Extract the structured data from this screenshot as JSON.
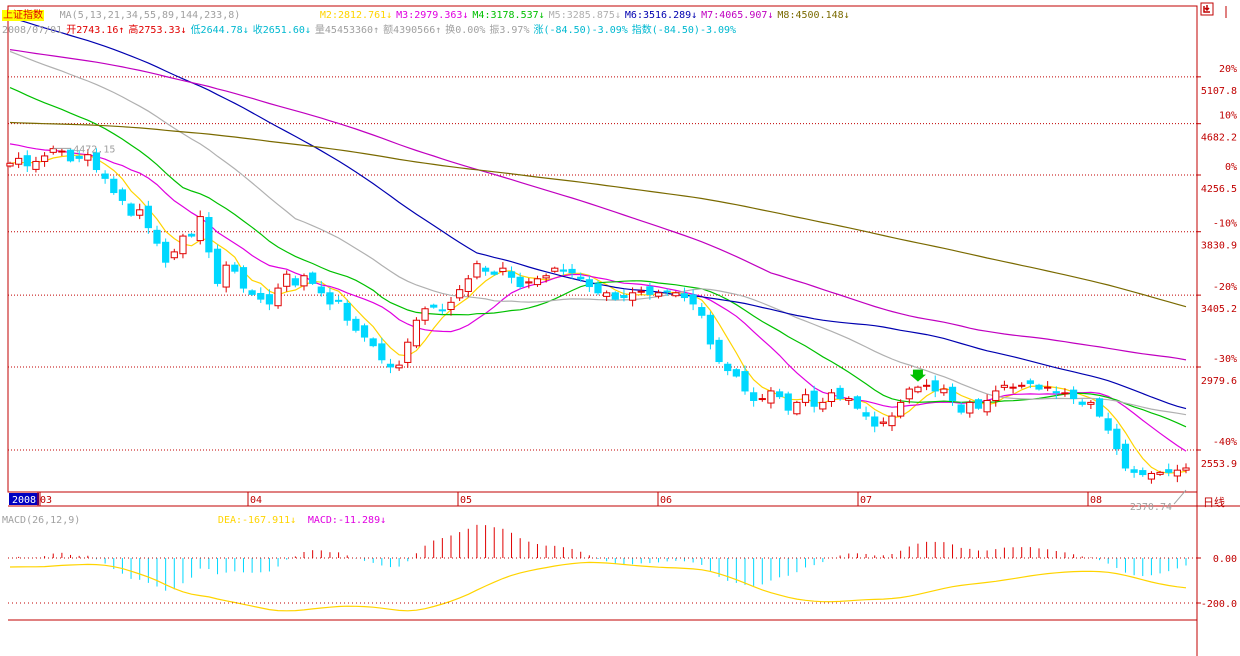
{
  "header": {
    "index_name": "上证指数",
    "ma_spec": "MA(5,13,21,34,55,89,144,233,8)",
    "ma_values": [
      {
        "label": "M2:2812.761↓",
        "color": "#ffd400"
      },
      {
        "label": "M3:2979.363↓",
        "color": "#e000e0"
      },
      {
        "label": "M4:3178.537↓",
        "color": "#00c000"
      },
      {
        "label": "M5:3285.875↓",
        "color": "#b0b0b0"
      },
      {
        "label": "M6:3516.289↓",
        "color": "#0000b0"
      },
      {
        "label": "M7:4065.907↓",
        "color": "#c000c0"
      },
      {
        "label": "M8:4500.148↓",
        "color": "#7a6a00"
      }
    ]
  },
  "info": [
    {
      "label": "2008/07/01",
      "color": "#a0a0a0"
    },
    {
      "label": "开2743.16↑",
      "color": "#e00000"
    },
    {
      "label": "高2753.33↓",
      "color": "#e00000"
    },
    {
      "label": "低2644.78↓",
      "color": "#00b8d0"
    },
    {
      "label": "收2651.60↓",
      "color": "#00b8d0"
    },
    {
      "label": "量45453360↑",
      "color": "#a0a0a0"
    },
    {
      "label": "额4390566↑",
      "color": "#a0a0a0"
    },
    {
      "label": "换0.00%",
      "color": "#a0a0a0"
    },
    {
      "label": "振3.97%",
      "color": "#a0a0a0"
    },
    {
      "label": "涨(-84.50)-3.09%",
      "color": "#00b8d0"
    },
    {
      "label": "指数(-84.50)-3.09%",
      "color": "#00b8d0"
    }
  ],
  "macd_header": {
    "spec": "MACD(26,12,9)",
    "dea": "DEA:-167.911↓",
    "macd": "MACD:-11.289↓"
  },
  "ui": {
    "daily_label": "日线",
    "corner_icon": "exit-fullscreen-icon"
  },
  "colors": {
    "up": "#e00000",
    "down": "#00d8ff",
    "grid": "#c00000",
    "axis": "#c00000",
    "text_gray": "#a0a0a0",
    "text_red": "#e00000"
  },
  "chart_data": [
    {
      "type": "candlestick",
      "x_labels": [
        "2008",
        "03",
        "04",
        "05",
        "06",
        "07",
        "08"
      ],
      "y_scale": "log",
      "ylim": [
        2350,
        5400
      ],
      "right_axis_ticks": [
        {
          "pct": "20%",
          "price": "5107.8"
        },
        {
          "pct": "10%",
          "price": "4682.2"
        },
        {
          "pct": "0%",
          "price": "4256.5"
        },
        {
          "pct": "-10%",
          "price": "3830.9"
        },
        {
          "pct": "-20%",
          "price": "3405.2"
        },
        {
          "pct": "-30%",
          "price": "2979.6"
        },
        {
          "pct": "-40%",
          "price": "2553.9"
        }
      ],
      "annotations": [
        {
          "text": "4472.15",
          "candle_index": 5,
          "price": 4472.15
        },
        {
          "text": "2370.74",
          "candle_index": 136,
          "price": 2370.74
        }
      ],
      "close_series": [
        4350,
        4390,
        4330,
        4365,
        4410,
        4470,
        4450,
        4370,
        4390,
        4420,
        4300,
        4230,
        4120,
        4060,
        3950,
        3990,
        3860,
        3750,
        3620,
        3690,
        3800,
        3800,
        3940,
        3690,
        3480,
        3600,
        3560,
        3450,
        3410,
        3380,
        3350,
        3450,
        3540,
        3470,
        3530,
        3480,
        3420,
        3350,
        3370,
        3250,
        3190,
        3150,
        3100,
        3020,
        2980,
        2990,
        3120,
        3250,
        3320,
        3330,
        3310,
        3360,
        3440,
        3510,
        3610,
        3560,
        3540,
        3580,
        3520,
        3460,
        3490,
        3510,
        3530,
        3580,
        3560,
        3550,
        3510,
        3460,
        3420,
        3420,
        3380,
        3390,
        3420,
        3430,
        3410,
        3420,
        3430,
        3420,
        3390,
        3350,
        3280,
        3110,
        3010,
        2960,
        2930,
        2850,
        2800,
        2810,
        2850,
        2820,
        2750,
        2790,
        2830,
        2770,
        2790,
        2840,
        2810,
        2810,
        2760,
        2720,
        2670,
        2690,
        2720,
        2790,
        2860,
        2870,
        2880,
        2850,
        2860,
        2800,
        2740,
        2790,
        2760,
        2800,
        2850,
        2880,
        2870,
        2880,
        2890,
        2860,
        2870,
        2840,
        2840,
        2810,
        2780,
        2790,
        2720,
        2650,
        2560,
        2470,
        2450,
        2440,
        2445,
        2450,
        2450,
        2460,
        2470
      ],
      "highlight_candle": {
        "index": 105,
        "marker": "down-arrow",
        "color": "#00c000"
      }
    },
    {
      "type": "macd",
      "yticks": [
        "0.00",
        "-200.0"
      ],
      "ylim": [
        -250,
        150
      ],
      "series": [
        {
          "name": "DEA",
          "color": "#ffd400"
        }
      ]
    }
  ]
}
